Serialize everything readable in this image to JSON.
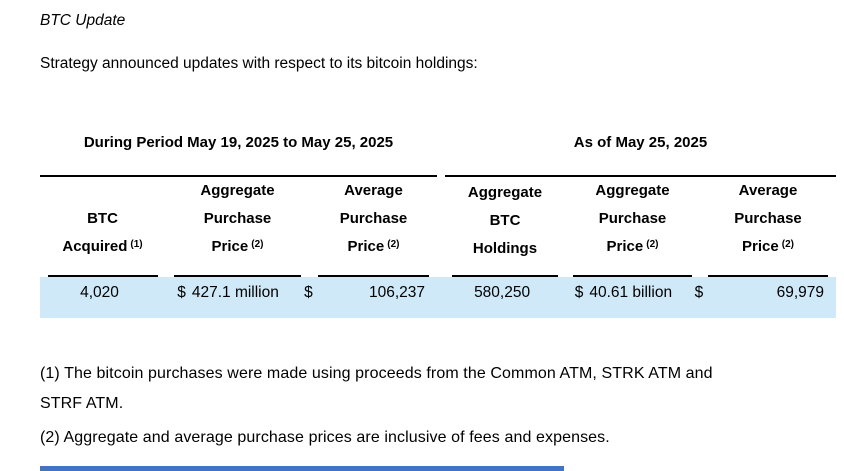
{
  "document": {
    "title": "BTC Update",
    "intro": "Strategy announced updates with respect to its bitcoin holdings:"
  },
  "table": {
    "section1": {
      "header": "During Period May 19, 2025 to May 25, 2025",
      "col1": {
        "line1": "BTC",
        "line2": "Acquired",
        "sup": "(1)"
      },
      "col2": {
        "line1": "Aggregate",
        "line2": "Purchase",
        "line3": "Price",
        "sup": "(2)"
      },
      "col3": {
        "line1": "Average",
        "line2": "Purchase",
        "line3": "Price",
        "sup": "(2)"
      },
      "val1": "4,020",
      "val2_currency": "$",
      "val2": "427.1 million",
      "val3_currency": "$",
      "val3": "106,237"
    },
    "section2": {
      "header": "As of May 25, 2025",
      "col1": {
        "line1": "Aggregate",
        "line2": "BTC",
        "line3": "Holdings"
      },
      "col2": {
        "line1": "Aggregate",
        "line2": "Purchase",
        "line3": "Price",
        "sup": "(2)"
      },
      "col3": {
        "line1": "Average",
        "line2": "Purchase",
        "line3": "Price",
        "sup": "(2)"
      },
      "val1": "580,250",
      "val2_currency": "$",
      "val2": "40.61 billion",
      "val3_currency": "$",
      "val3": "69,979"
    }
  },
  "footnotes": {
    "note1_line1": "(1) The bitcoin purchases were made using proceeds from the Common ATM, STRK ATM and",
    "note1_line2": "STRF ATM.",
    "note2": "(2) Aggregate and average purchase prices are inclusive of fees and expenses."
  },
  "colors": {
    "highlight_row": "#cfe9f8",
    "bottom_bar": "#4472c4",
    "rule": "#000000",
    "text": "#000000"
  }
}
